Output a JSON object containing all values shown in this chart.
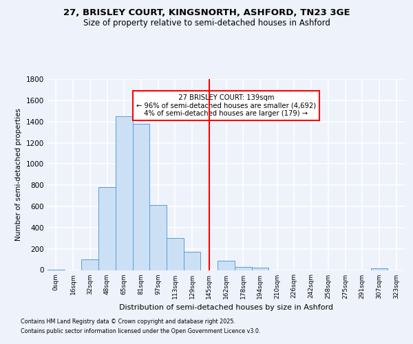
{
  "title1": "27, BRISLEY COURT, KINGSNORTH, ASHFORD, TN23 3GE",
  "title2": "Size of property relative to semi-detached houses in Ashford",
  "xlabel": "Distribution of semi-detached houses by size in Ashford",
  "ylabel": "Number of semi-detached properties",
  "annotation_line1": "  27 BRISLEY COURT: 139sqm  ",
  "annotation_line2": "← 96% of semi-detached houses are smaller (4,692)",
  "annotation_line3": "  4% of semi-detached houses are larger (179) →  ",
  "footer1": "Contains HM Land Registry data © Crown copyright and database right 2025.",
  "footer2": "Contains public sector information licensed under the Open Government Licence v3.0.",
  "bin_labels": [
    "0sqm",
    "16sqm",
    "32sqm",
    "48sqm",
    "65sqm",
    "81sqm",
    "97sqm",
    "113sqm",
    "129sqm",
    "145sqm",
    "162sqm",
    "178sqm",
    "194sqm",
    "210sqm",
    "226sqm",
    "242sqm",
    "258sqm",
    "275sqm",
    "291sqm",
    "307sqm",
    "323sqm"
  ],
  "bar_values": [
    5,
    0,
    100,
    780,
    1450,
    1380,
    610,
    300,
    175,
    0,
    85,
    30,
    20,
    0,
    0,
    0,
    0,
    0,
    0,
    15,
    0
  ],
  "bar_color": "#cce0f5",
  "bar_edge_color": "#5b9bd5",
  "vline_x": 9.0,
  "vline_color": "red",
  "ylim": [
    0,
    1800
  ],
  "yticks": [
    0,
    200,
    400,
    600,
    800,
    1000,
    1200,
    1400,
    1600,
    1800
  ],
  "background_color": "#eef2fb",
  "grid_color": "#ffffff",
  "title1_fontsize": 9.5,
  "title2_fontsize": 8.5
}
